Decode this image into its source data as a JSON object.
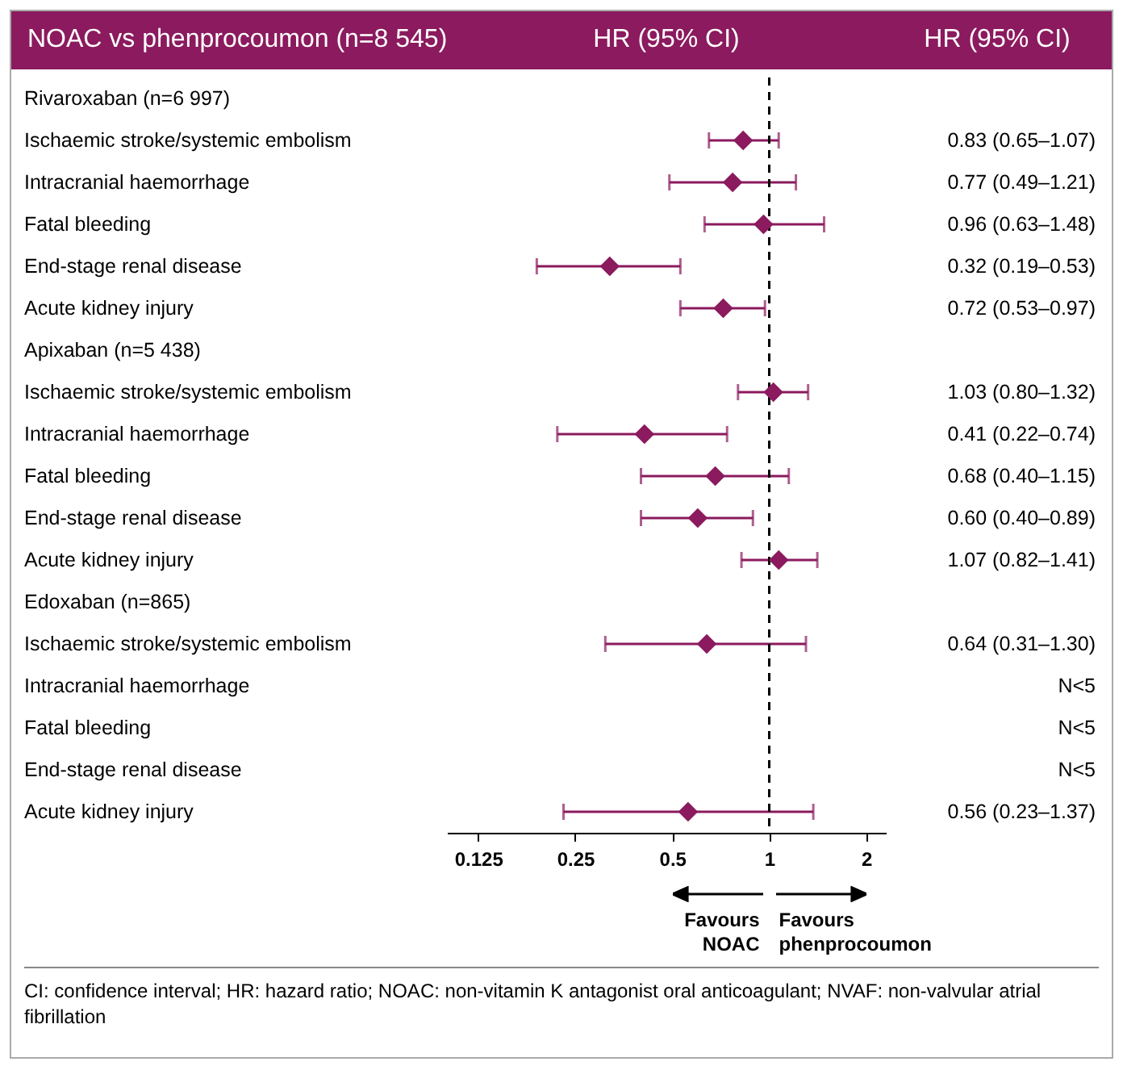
{
  "chart_data": {
    "type": "scatter",
    "orientation": "horizontal",
    "title": "NOAC vs phenprocoumon (n=8 545)",
    "categories": [
      "Rivaroxaban (n=6 997)",
      "Ischaemic stroke/systemic embolism",
      "Intracranial haemorrhage",
      "Fatal bleeding",
      "End-stage renal disease",
      "Acute kidney injury",
      "Apixaban (n=5 438)",
      "Ischaemic stroke/systemic embolism",
      "Intracranial haemorrhage",
      "Fatal bleeding",
      "End-stage renal disease",
      "Acute kidney injury",
      "Edoxaban (n=865)",
      "Ischaemic stroke/systemic embolism",
      "Intracranial haemorrhage",
      "Fatal bleeding",
      "End-stage renal disease",
      "Acute kidney injury"
    ],
    "values": [
      null,
      0.83,
      0.77,
      0.96,
      0.32,
      0.72,
      null,
      1.03,
      0.41,
      0.68,
      0.6,
      1.07,
      null,
      0.64,
      null,
      null,
      null,
      0.56
    ],
    "errors": [
      null,
      [
        0.65,
        1.07
      ],
      [
        0.49,
        1.21
      ],
      [
        0.63,
        1.48
      ],
      [
        0.19,
        0.53
      ],
      [
        0.53,
        0.97
      ],
      null,
      [
        0.8,
        1.32
      ],
      [
        0.22,
        0.74
      ],
      [
        0.4,
        1.15
      ],
      [
        0.4,
        0.89
      ],
      [
        0.82,
        1.41
      ],
      null,
      [
        0.31,
        1.3
      ],
      null,
      null,
      null,
      [
        0.23,
        1.37
      ]
    ],
    "value_labels": [
      null,
      "0.83 (0.65–1.07)",
      "0.77 (0.49–1.21)",
      "0.96 (0.63–1.48)",
      "0.32 (0.19–0.53)",
      "0.72 (0.53–0.97)",
      null,
      "1.03 (0.80–1.32)",
      "0.41 (0.22–0.74)",
      "0.68 (0.40–1.15)",
      "0.60 (0.40–0.89)",
      "1.07 (0.82–1.41)",
      null,
      "0.64 (0.31–1.30)",
      "N<5",
      "N<5",
      "N<5",
      "0.56 (0.23–1.37)"
    ],
    "color": "#8b1a5e",
    "marker": "diamond",
    "log": "x",
    "xlim": [
      0.1,
      2.3
    ],
    "xticks": [
      0.125,
      0.25,
      0.5,
      1,
      2
    ],
    "ref_lines": [
      {
        "axis": "x",
        "value": 1,
        "line_style": "dashed",
        "color": "#000000"
      }
    ],
    "annotations": [
      "HR (95% CI)",
      "HR (95% CI)",
      "Favours NOAC",
      "Favours phenprocoumon",
      "CI: confidence interval; HR: hazard ratio; NOAC: non-vitamin K antagonist oral anticoagulant; NVAF: non-valvular atrial fibrillation"
    ]
  }
}
